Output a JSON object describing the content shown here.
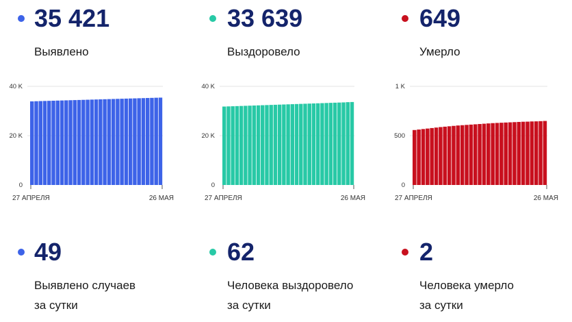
{
  "colors": {
    "cases": "#3d63e8",
    "recovered": "#28c9a6",
    "deaths": "#c8101e",
    "number": "#14246b"
  },
  "top_stats": [
    {
      "value": "35 421",
      "label": "Выявлено",
      "color": "#3d63e8"
    },
    {
      "value": "33 639",
      "label": "Выздоровело",
      "color": "#28c9a6"
    },
    {
      "value": "649",
      "label": "Умерло",
      "color": "#c8101e"
    }
  ],
  "daily_stats": [
    {
      "value": "49",
      "label_line1": "Выявлено случаев",
      "label_line2": "за сутки",
      "color": "#3d63e8"
    },
    {
      "value": "62",
      "label_line1": "Человека выздоровело",
      "label_line2": "за сутки",
      "color": "#28c9a6"
    },
    {
      "value": "2",
      "label_line1": "Человека умерло",
      "label_line2": "за сутки",
      "color": "#c8101e"
    }
  ],
  "chart_data": [
    {
      "type": "bar",
      "series_key": "cases",
      "color": "#3d63e8",
      "x_start_label": "27 АПРЕЛЯ",
      "x_end_label": "26 МАЯ",
      "ylim": [
        0,
        40000
      ],
      "y_ticks": [
        0,
        20000,
        40000
      ],
      "y_tick_labels": [
        "0",
        "20 K",
        "40 K"
      ],
      "grid": true,
      "values": [
        33900,
        33960,
        34020,
        34070,
        34120,
        34170,
        34220,
        34270,
        34320,
        34370,
        34420,
        34470,
        34520,
        34570,
        34620,
        34670,
        34720,
        34770,
        34820,
        34870,
        34920,
        34970,
        35020,
        35070,
        35120,
        35170,
        35220,
        35270,
        35320,
        35372,
        35421
      ]
    },
    {
      "type": "bar",
      "series_key": "recovered",
      "color": "#28c9a6",
      "x_start_label": "27 АПРЕЛЯ",
      "x_end_label": "26 МАЯ",
      "ylim": [
        0,
        40000
      ],
      "y_ticks": [
        0,
        20000,
        40000
      ],
      "y_tick_labels": [
        "0",
        "20 K",
        "40 K"
      ],
      "grid": true,
      "values": [
        31800,
        31860,
        31920,
        31980,
        32040,
        32100,
        32160,
        32220,
        32280,
        32340,
        32400,
        32460,
        32520,
        32580,
        32640,
        32700,
        32760,
        32820,
        32880,
        32940,
        33000,
        33060,
        33120,
        33180,
        33240,
        33300,
        33360,
        33420,
        33480,
        33577,
        33639
      ]
    },
    {
      "type": "bar",
      "series_key": "deaths",
      "color": "#c8101e",
      "x_start_label": "27 АПРЕЛЯ",
      "x_end_label": "26 МАЯ",
      "ylim": [
        0,
        1000
      ],
      "y_ticks": [
        0,
        500,
        1000
      ],
      "y_tick_labels": [
        "0",
        "500",
        "1 K"
      ],
      "grid": true,
      "values": [
        557,
        562,
        567,
        572,
        577,
        582,
        587,
        591,
        595,
        599,
        603,
        606,
        609,
        612,
        615,
        618,
        621,
        624,
        627,
        629,
        631,
        633,
        635,
        637,
        639,
        641,
        642,
        644,
        645,
        647,
        649
      ]
    }
  ]
}
